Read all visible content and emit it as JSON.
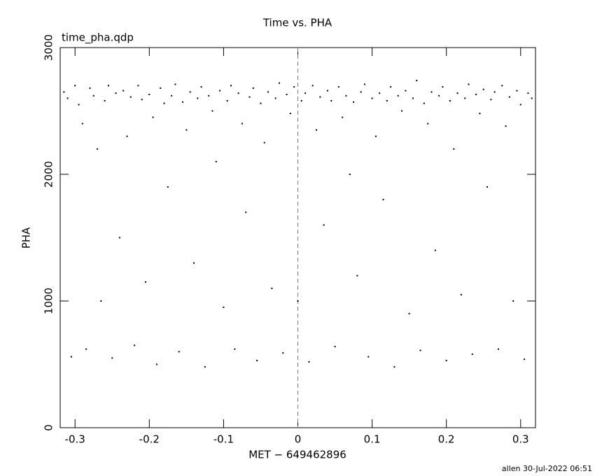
{
  "chart_data": {
    "type": "scatter",
    "title": "Time vs. PHA",
    "subtitle": "time_pha.qdp",
    "x_label": "MET − 649462896",
    "y_label": "PHA",
    "footer": "allen 30-Jul-2022 06:51",
    "xlim": [
      -0.32,
      0.32
    ],
    "ylim": [
      0,
      3000
    ],
    "xticks": [
      -0.3,
      -0.2,
      -0.1,
      0,
      0.1,
      0.2,
      0.3
    ],
    "yticks": [
      0,
      1000,
      2000,
      3000
    ],
    "vline_x": 0,
    "vline_color": "#2a9d9d",
    "color": "#000000",
    "x": [
      -0.315,
      -0.31,
      -0.305,
      -0.3,
      -0.295,
      -0.29,
      -0.285,
      -0.28,
      -0.275,
      -0.27,
      -0.265,
      -0.26,
      -0.255,
      -0.25,
      -0.245,
      -0.24,
      -0.235,
      -0.23,
      -0.225,
      -0.22,
      -0.215,
      -0.21,
      -0.205,
      -0.2,
      -0.195,
      -0.19,
      -0.185,
      -0.18,
      -0.175,
      -0.17,
      -0.165,
      -0.16,
      -0.155,
      -0.15,
      -0.145,
      -0.14,
      -0.135,
      -0.13,
      -0.125,
      -0.12,
      -0.115,
      -0.11,
      -0.105,
      -0.1,
      -0.095,
      -0.09,
      -0.085,
      -0.08,
      -0.075,
      -0.07,
      -0.065,
      -0.06,
      -0.055,
      -0.05,
      -0.045,
      -0.04,
      -0.035,
      -0.03,
      -0.025,
      -0.02,
      -0.015,
      -0.01,
      -0.005,
      0,
      0.005,
      0.01,
      0.015,
      0.02,
      0.025,
      0.03,
      0.035,
      0.04,
      0.045,
      0.05,
      0.055,
      0.06,
      0.065,
      0.07,
      0.075,
      0.08,
      0.085,
      0.09,
      0.095,
      0.1,
      0.105,
      0.11,
      0.115,
      0.12,
      0.125,
      0.13,
      0.135,
      0.14,
      0.145,
      0.15,
      0.155,
      0.16,
      0.165,
      0.17,
      0.175,
      0.18,
      0.185,
      0.19,
      0.195,
      0.2,
      0.205,
      0.21,
      0.215,
      0.22,
      0.225,
      0.23,
      0.235,
      0.24,
      0.245,
      0.25,
      0.255,
      0.26,
      0.265,
      0.27,
      0.275,
      0.28,
      0.285,
      0.29,
      0.295,
      0.3,
      0.305,
      0.31,
      0.315
    ],
    "y": [
      2650,
      2600,
      560,
      2700,
      2550,
      2400,
      620,
      2680,
      2620,
      2200,
      1000,
      2580,
      2700,
      550,
      2640,
      1500,
      2660,
      2300,
      2610,
      650,
      2700,
      2590,
      1150,
      2630,
      2450,
      500,
      2680,
      2560,
      1900,
      2620,
      2710,
      600,
      2570,
      2350,
      2650,
      1300,
      2600,
      2690,
      480,
      2620,
      2500,
      2100,
      2660,
      950,
      2580,
      2700,
      620,
      2640,
      2400,
      1700,
      2610,
      2680,
      530,
      2560,
      2250,
      2650,
      1100,
      2600,
      2720,
      590,
      2630,
      2480,
      2690,
      1000,
      2580,
      2640,
      520,
      2700,
      2350,
      2610,
      1600,
      2660,
      2580,
      640,
      2690,
      2450,
      2620,
      2000,
      2570,
      1200,
      2650,
      2710,
      560,
      2600,
      2300,
      2640,
      1800,
      2580,
      2690,
      480,
      2620,
      2500,
      2660,
      900,
      2600,
      2740,
      610,
      2560,
      2400,
      2650,
      1400,
      2620,
      2690,
      530,
      2580,
      2200,
      2640,
      1050,
      2600,
      2710,
      580,
      2630,
      2480,
      2670,
      1900,
      2590,
      2650,
      620,
      2700,
      2380,
      2610,
      1000,
      2660,
      2550,
      540,
      2640,
      2600
    ]
  }
}
